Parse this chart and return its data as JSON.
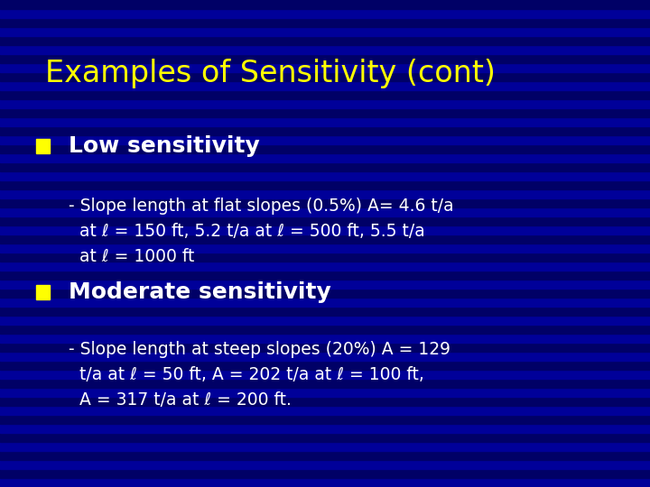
{
  "title": "Examples of Sensitivity (cont)",
  "title_color": "#FFFF00",
  "title_fontsize": 24,
  "bg_color_dark": "#000066",
  "bg_color_mid": "#000099",
  "bullet_square_color": "#FFFF00",
  "bullet_text_color": "#FFFFFF",
  "sub_text_color": "#FFFFFF",
  "bullet1": "Low sensitivity",
  "bullet2": "Moderate sensitivity",
  "sub1_line1": "- Slope length at flat slopes (0.5%) A= 4.6 t/a",
  "sub1_line2": "  at ℓ = 150 ft, 5.2 t/a at ℓ = 500 ft, 5.5 t/a",
  "sub1_line3": "  at ℓ = 1000 ft",
  "sub2_line1": "- Slope length at steep slopes (20%) A = 129",
  "sub2_line2": "  t/a at ℓ = 50 ft, A = 202 t/a at ℓ = 100 ft,",
  "sub2_line3": "  A = 317 t/a at ℓ = 200 ft."
}
